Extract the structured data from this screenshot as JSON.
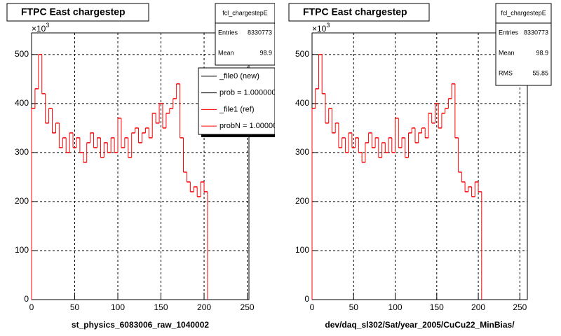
{
  "chart_data": [
    {
      "type": "histogram",
      "title": "FTPC East chargestep",
      "x_label": "st_physics_6083006_raw_1040002",
      "y_multiplier": "×10",
      "y_exponent": "3",
      "bins": [
        0,
        4,
        8,
        12,
        16,
        20,
        24,
        28,
        32,
        36,
        40,
        44,
        48,
        52,
        56,
        60,
        64,
        68,
        72,
        76,
        80,
        84,
        88,
        92,
        96,
        100,
        104,
        108,
        112,
        116,
        120,
        124,
        128,
        132,
        136,
        140,
        144,
        148,
        152,
        156,
        160,
        164,
        168,
        172,
        176,
        180,
        184,
        188,
        192,
        196,
        200,
        204
      ],
      "values": [
        390,
        430,
        500,
        420,
        360,
        390,
        340,
        360,
        310,
        330,
        300,
        340,
        310,
        330,
        300,
        280,
        320,
        340,
        310,
        330,
        290,
        320,
        300,
        330,
        300,
        370,
        310,
        330,
        290,
        340,
        350,
        320,
        340,
        350,
        330,
        380,
        360,
        400,
        350,
        380,
        390,
        410,
        440,
        330,
        260,
        240,
        220,
        230,
        210,
        240,
        220
      ],
      "color": "#ff0000",
      "xlim": [
        0,
        252
      ],
      "ylim": [
        0,
        544
      ],
      "xticks": [
        0,
        50,
        100,
        150,
        200,
        250
      ],
      "yticks": [
        0,
        100,
        200,
        300,
        400,
        500
      ],
      "grid": true,
      "stats": {
        "name": "fcl_chargestepE",
        "entries_label": "Entries",
        "entries": "8330773",
        "mean_label": "Mean",
        "mean": "98.9"
      },
      "legend": [
        {
          "label": "_file0 (new)",
          "color": "#000000"
        },
        {
          "label": "prob = 1.000000",
          "color": "#000000"
        },
        {
          "label": "_file1 (ref)",
          "color": "#ff0000"
        },
        {
          "label": "probN = 1.000000",
          "color": "#ff0000"
        }
      ]
    },
    {
      "type": "histogram",
      "title": "FTPC East chargestep",
      "x_label": "dev/daq_sl302/Sat/year_2005/CuCu22_MinBias/",
      "y_multiplier": "×10",
      "y_exponent": "3",
      "bins": [
        0,
        4,
        8,
        12,
        16,
        20,
        24,
        28,
        32,
        36,
        40,
        44,
        48,
        52,
        56,
        60,
        64,
        68,
        72,
        76,
        80,
        84,
        88,
        92,
        96,
        100,
        104,
        108,
        112,
        116,
        120,
        124,
        128,
        132,
        136,
        140,
        144,
        148,
        152,
        156,
        160,
        164,
        168,
        172,
        176,
        180,
        184,
        188,
        192,
        196,
        200,
        204
      ],
      "values": [
        390,
        430,
        500,
        420,
        360,
        390,
        340,
        360,
        310,
        330,
        300,
        340,
        310,
        330,
        300,
        280,
        320,
        340,
        310,
        330,
        290,
        320,
        300,
        330,
        300,
        370,
        310,
        330,
        290,
        340,
        350,
        320,
        340,
        350,
        330,
        380,
        360,
        400,
        350,
        380,
        390,
        410,
        440,
        330,
        260,
        240,
        220,
        230,
        210,
        240,
        220
      ],
      "color": "#ff0000",
      "xlim": [
        0,
        259
      ],
      "ylim": [
        0,
        544
      ],
      "xticks": [
        0,
        50,
        100,
        150,
        200,
        250
      ],
      "yticks": [
        0,
        100,
        200,
        300,
        400,
        500
      ],
      "grid": true,
      "stats": {
        "name": "fcl_chargestepE",
        "entries_label": "Entries",
        "entries": "8330773",
        "mean_label": "Mean",
        "mean": "98.9",
        "rms_label": "RMS",
        "rms": "55.85"
      }
    }
  ]
}
